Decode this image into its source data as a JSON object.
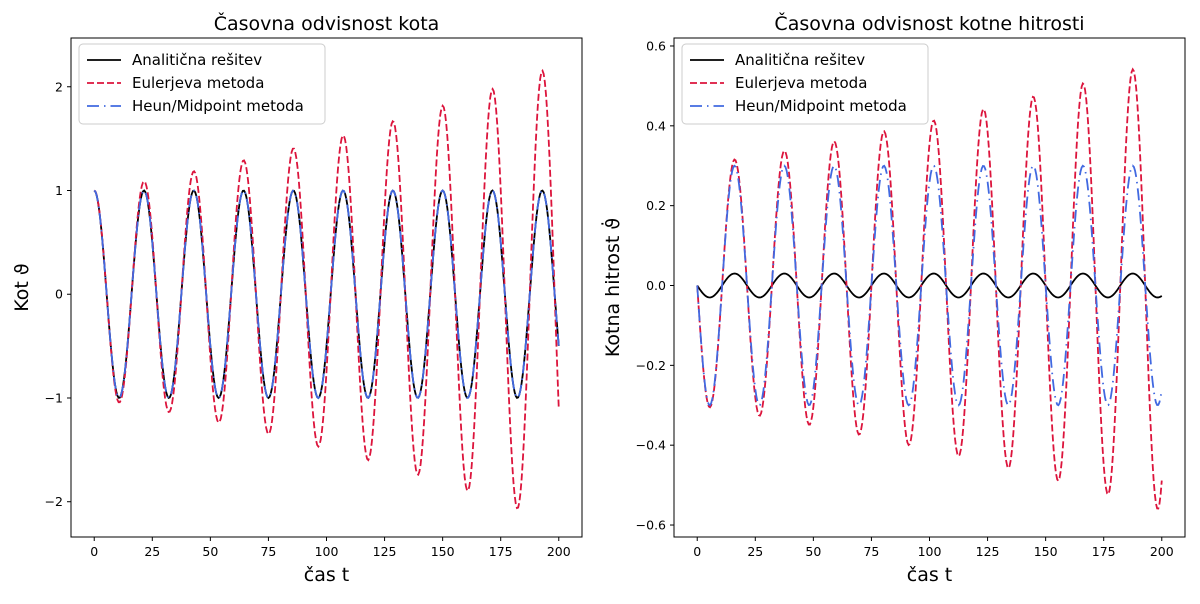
{
  "chart_data": [
    {
      "type": "line",
      "title": "Časovna odvisnost kota",
      "xlabel": "čas t",
      "ylabel": "Kot ϑ",
      "xlim": [
        -10,
        210
      ],
      "ylim": [
        -2.34,
        2.47
      ],
      "xticks": [
        0,
        25,
        50,
        75,
        100,
        125,
        150,
        175,
        200
      ],
      "yticks": [
        -2,
        -1,
        0,
        1,
        2
      ],
      "ytick_labels": [
        "−2",
        "−1",
        "0",
        "1",
        "2"
      ],
      "legend_position": "upper-left",
      "grid": false,
      "x": {
        "start": 0,
        "end": 200,
        "step": 0.5
      },
      "series": [
        {
          "name": "Analitična rešitev",
          "color": "#000000",
          "style": "solid",
          "model": {
            "amplitude": 1.0,
            "omega": 0.2932,
            "growth": 0.0,
            "function": "cos"
          }
        },
        {
          "name": "Eulerjeva metoda",
          "color": "#dc143c",
          "style": "dashed",
          "model": {
            "amplitude": 1.0,
            "omega": 0.2932,
            "growth": 0.00398,
            "function": "cos"
          }
        },
        {
          "name": "Heun/Midpoint metoda",
          "color": "#4169e1",
          "style": "dashdot",
          "model": {
            "amplitude": 1.0,
            "omega": 0.2932,
            "growth": 0.0,
            "function": "cos"
          }
        }
      ]
    },
    {
      "type": "line",
      "title": "Časovna odvisnost kotne hitrosti",
      "xlabel": "čas t",
      "ylabel": "Kotna hitrost ϑ̇",
      "xlim": [
        -10,
        210
      ],
      "ylim": [
        -0.63,
        0.62
      ],
      "xticks": [
        0,
        25,
        50,
        75,
        100,
        125,
        150,
        175,
        200
      ],
      "yticks": [
        -0.6,
        -0.4,
        -0.2,
        0.0,
        0.2,
        0.4,
        0.6
      ],
      "ytick_labels": [
        "−0.6",
        "−0.4",
        "−0.2",
        "0.0",
        "0.2",
        "0.4",
        "0.6"
      ],
      "legend_position": "upper-left",
      "grid": false,
      "x": {
        "start": 0,
        "end": 200,
        "step": 0.5
      },
      "series": [
        {
          "name": "Analitična rešitev",
          "color": "#000000",
          "style": "solid",
          "model": {
            "amplitude": 0.03,
            "omega": 0.2932,
            "growth": 0.0,
            "function": "-sin"
          }
        },
        {
          "name": "Eulerjeva metoda",
          "color": "#dc143c",
          "style": "dashed",
          "model": {
            "amplitude": 0.3,
            "omega": 0.2932,
            "growth": 0.00315,
            "function": "-sin"
          }
        },
        {
          "name": "Heun/Midpoint metoda",
          "color": "#4169e1",
          "style": "dashdot",
          "model": {
            "amplitude": 0.3,
            "omega": 0.2932,
            "growth": 0.0,
            "function": "-sin"
          }
        }
      ]
    }
  ]
}
